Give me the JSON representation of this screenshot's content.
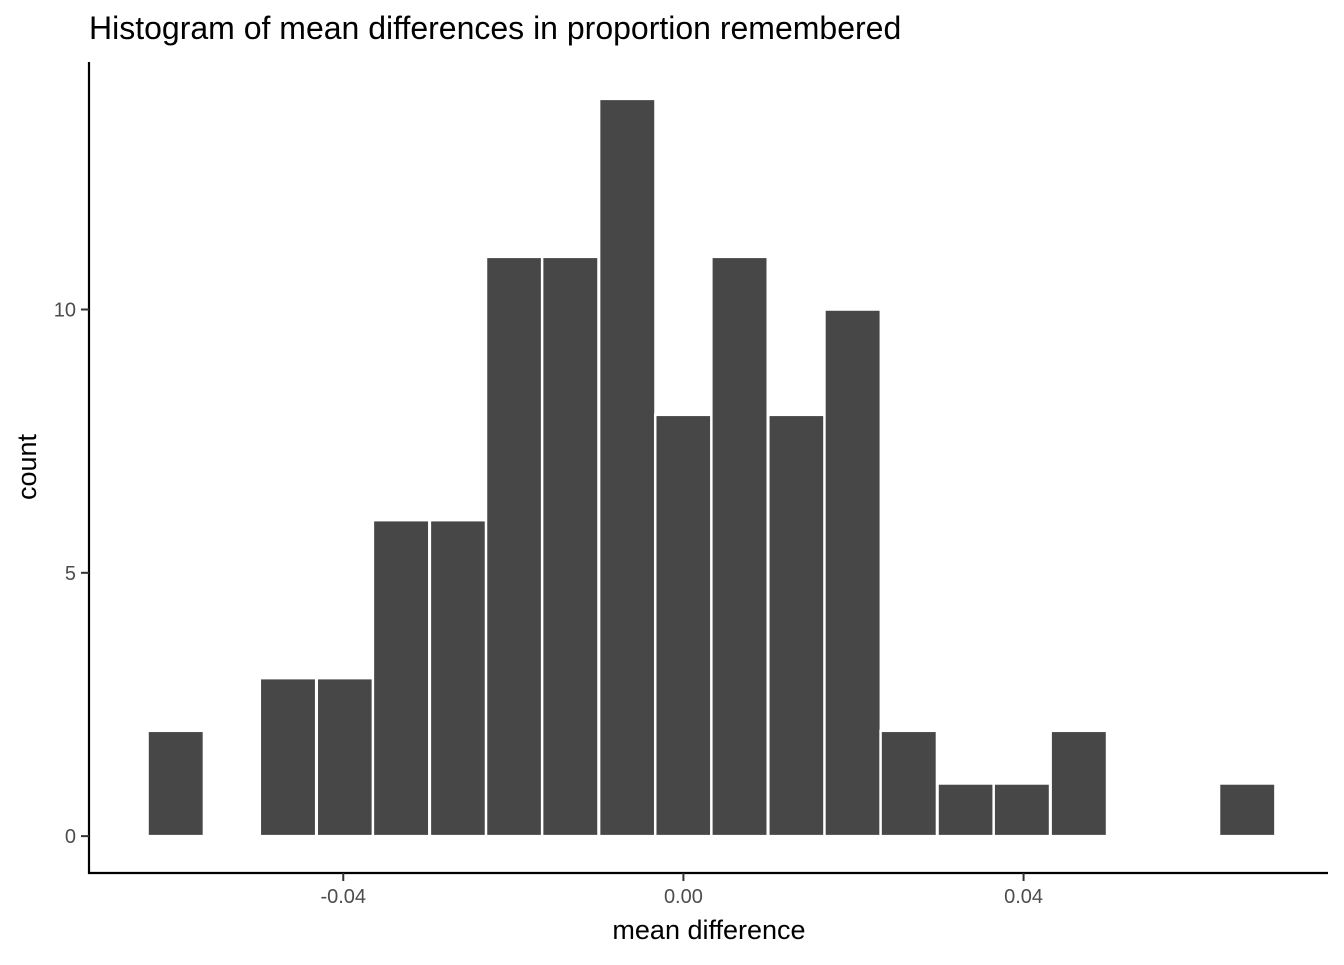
{
  "chart_data": {
    "type": "bar",
    "title": "Histogram of mean differences in proportion remembered",
    "xlabel": "mean difference",
    "ylabel": "count",
    "xlim": [
      -0.0699,
      0.0758
    ],
    "ylim": [
      -0.7,
      14.7
    ],
    "x_ticks": [
      -0.04,
      0.0,
      0.04
    ],
    "x_tick_labels": [
      "-0.04",
      "0.00",
      "0.04"
    ],
    "y_ticks": [
      0,
      5,
      10
    ],
    "y_tick_labels": [
      "0",
      "5",
      "10"
    ],
    "bin_width": 0.00663,
    "bins": [
      {
        "center": -0.0597,
        "count": 2
      },
      {
        "center": -0.0531,
        "count": 0
      },
      {
        "center": -0.0465,
        "count": 3
      },
      {
        "center": -0.0398,
        "count": 3
      },
      {
        "center": -0.0332,
        "count": 6
      },
      {
        "center": -0.0265,
        "count": 6
      },
      {
        "center": -0.0199,
        "count": 11
      },
      {
        "center": -0.0133,
        "count": 11
      },
      {
        "center": -0.0066,
        "count": 14
      },
      {
        "center": 0.0,
        "count": 8
      },
      {
        "center": 0.0066,
        "count": 11
      },
      {
        "center": 0.0133,
        "count": 8
      },
      {
        "center": 0.0199,
        "count": 10
      },
      {
        "center": 0.0265,
        "count": 2
      },
      {
        "center": 0.0332,
        "count": 1
      },
      {
        "center": 0.0398,
        "count": 1
      },
      {
        "center": 0.0465,
        "count": 2
      },
      {
        "center": 0.0531,
        "count": 0
      },
      {
        "center": 0.0597,
        "count": 0
      },
      {
        "center": 0.0663,
        "count": 1
      }
    ],
    "grid": false,
    "legend": "none",
    "bar_color": "#474747",
    "bar_outline_color": "#ffffff"
  }
}
